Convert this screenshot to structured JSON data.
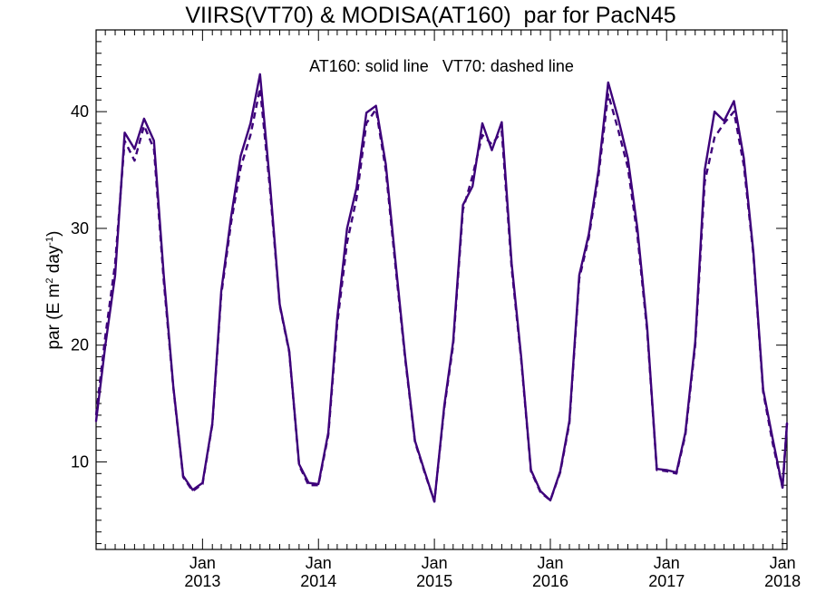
{
  "chart_data": {
    "type": "line",
    "title": "VIIRS(VT70) & MODISA(AT160)  par for PacN45",
    "annotation": "AT160: solid line   VT70: dashed line",
    "ylabel": {
      "base": "par (E m",
      "sup1": "2",
      "mid": " day",
      "sup2": "-1",
      "end": ")"
    },
    "ylim": [
      2.5,
      47
    ],
    "y_ticks": [
      10,
      20,
      30,
      40
    ],
    "xlim": [
      "2012-02-01",
      "2018-01-15"
    ],
    "x_ticks": [
      {
        "date": "2013-01-01",
        "month": "Jan",
        "year": "2013"
      },
      {
        "date": "2014-01-01",
        "month": "Jan",
        "year": "2014"
      },
      {
        "date": "2015-01-01",
        "month": "Jan",
        "year": "2015"
      },
      {
        "date": "2016-01-01",
        "month": "Jan",
        "year": "2016"
      },
      {
        "date": "2017-01-01",
        "month": "Jan",
        "year": "2017"
      },
      {
        "date": "2018-01-01",
        "month": "Jan",
        "year": "2018"
      }
    ],
    "line_color": "#3d007a",
    "series": [
      {
        "name": "AT160",
        "style": "solid",
        "x": [
          "2012-02-01",
          "2012-03-01",
          "2012-04-01",
          "2012-05-01",
          "2012-06-01",
          "2012-07-01",
          "2012-08-01",
          "2012-09-01",
          "2012-10-01",
          "2012-11-01",
          "2012-12-01",
          "2013-01-01",
          "2013-02-01",
          "2013-03-01",
          "2013-04-01",
          "2013-05-01",
          "2013-06-01",
          "2013-07-01",
          "2013-08-01",
          "2013-09-01",
          "2013-10-01",
          "2013-11-01",
          "2013-12-01",
          "2014-01-01",
          "2014-02-01",
          "2014-03-01",
          "2014-04-01",
          "2014-05-01",
          "2014-06-01",
          "2014-07-01",
          "2014-08-01",
          "2014-09-01",
          "2014-10-01",
          "2014-11-01",
          "2014-12-01",
          "2015-01-01",
          "2015-02-01",
          "2015-03-01",
          "2015-04-01",
          "2015-05-01",
          "2015-06-01",
          "2015-07-01",
          "2015-08-01",
          "2015-09-01",
          "2015-10-01",
          "2015-11-01",
          "2015-12-01",
          "2016-01-01",
          "2016-02-01",
          "2016-03-01",
          "2016-04-01",
          "2016-05-01",
          "2016-06-01",
          "2016-07-01",
          "2016-08-01",
          "2016-09-01",
          "2016-10-01",
          "2016-11-01",
          "2016-12-01",
          "2017-01-01",
          "2017-02-01",
          "2017-03-01",
          "2017-04-01",
          "2017-05-01",
          "2017-06-01",
          "2017-07-01",
          "2017-08-01",
          "2017-09-01",
          "2017-10-01",
          "2017-11-01",
          "2017-12-01",
          "2018-01-01",
          "2018-01-15"
        ],
        "y": [
          13.5,
          20.0,
          26.0,
          38.2,
          36.8,
          39.4,
          37.5,
          26.0,
          16.5,
          8.8,
          7.6,
          8.2,
          13.3,
          24.6,
          31.0,
          36.2,
          39.0,
          43.2,
          34.0,
          23.5,
          19.5,
          9.8,
          8.2,
          8.1,
          12.5,
          22.3,
          30.0,
          33.5,
          39.9,
          40.5,
          35.5,
          27.0,
          19.0,
          11.8,
          9.2,
          6.6,
          14.8,
          20.3,
          32.0,
          33.6,
          39.0,
          36.7,
          39.1,
          27.0,
          19.0,
          9.3,
          7.5,
          6.7,
          9.2,
          13.5,
          26.0,
          29.5,
          35.0,
          42.5,
          39.5,
          36.0,
          30.0,
          21.5,
          9.4,
          9.3,
          9.1,
          12.5,
          20.3,
          35.0,
          40.0,
          39.2,
          40.9,
          36.0,
          28.0,
          16.2,
          12.0,
          7.8,
          13.3
        ]
      },
      {
        "name": "VT70",
        "style": "dashed",
        "x": [
          "2012-02-01",
          "2012-03-01",
          "2012-04-01",
          "2012-05-01",
          "2012-06-01",
          "2012-07-01",
          "2012-08-01",
          "2012-09-01",
          "2012-10-01",
          "2012-11-01",
          "2012-12-01",
          "2013-01-01",
          "2013-02-01",
          "2013-03-01",
          "2013-04-01",
          "2013-05-01",
          "2013-06-01",
          "2013-07-01",
          "2013-08-01",
          "2013-09-01",
          "2013-10-01",
          "2013-11-01",
          "2013-12-01",
          "2014-01-01",
          "2014-02-01",
          "2014-03-01",
          "2014-04-01",
          "2014-05-01",
          "2014-06-01",
          "2014-07-01",
          "2014-08-01",
          "2014-09-01",
          "2014-10-01",
          "2014-11-01",
          "2014-12-01",
          "2015-01-01",
          "2015-02-01",
          "2015-03-01",
          "2015-04-01",
          "2015-05-01",
          "2015-06-01",
          "2015-07-01",
          "2015-08-01",
          "2015-09-01",
          "2015-10-01",
          "2015-11-01",
          "2015-12-01",
          "2016-01-01",
          "2016-02-01",
          "2016-03-01",
          "2016-04-01",
          "2016-05-01",
          "2016-06-01",
          "2016-07-01",
          "2016-08-01",
          "2016-09-01",
          "2016-10-01",
          "2016-11-01",
          "2016-12-01",
          "2017-01-01",
          "2017-02-01",
          "2017-03-01",
          "2017-04-01",
          "2017-05-01",
          "2017-06-01",
          "2017-07-01",
          "2017-08-01",
          "2017-09-01",
          "2017-10-01",
          "2017-11-01",
          "2017-12-01",
          "2018-01-01",
          "2018-01-15"
        ],
        "y": [
          14.0,
          20.8,
          27.0,
          37.5,
          35.8,
          38.8,
          36.8,
          25.5,
          16.4,
          8.7,
          7.5,
          8.1,
          13.2,
          24.3,
          30.5,
          35.2,
          38.0,
          42.0,
          33.5,
          23.4,
          19.4,
          9.7,
          8.0,
          8.0,
          12.3,
          21.8,
          28.8,
          32.6,
          39.0,
          40.2,
          35.0,
          26.6,
          18.8,
          11.7,
          9.1,
          6.6,
          14.6,
          20.0,
          31.6,
          34.5,
          38.0,
          37.2,
          38.3,
          26.6,
          18.8,
          9.2,
          7.4,
          6.7,
          9.1,
          13.3,
          25.7,
          29.2,
          34.6,
          41.5,
          38.5,
          35.2,
          29.4,
          21.2,
          9.3,
          9.2,
          9.0,
          12.3,
          20.0,
          34.0,
          37.8,
          39.0,
          40.0,
          35.4,
          27.8,
          16.0,
          11.6,
          7.8,
          13.3
        ]
      }
    ],
    "grid": false,
    "legend": "none"
  }
}
